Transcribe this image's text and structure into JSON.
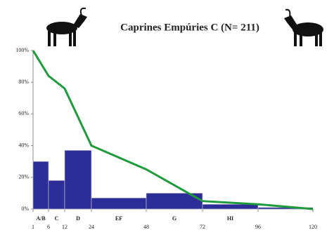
{
  "chart_data": {
    "type": "histogram",
    "title": "Caprines Empúries C (N= 211)",
    "bins": [
      1,
      6,
      12,
      24,
      48,
      72,
      96,
      120
    ],
    "classes": [
      "A/B",
      "C",
      "D",
      "EF",
      "G",
      "HI",
      null
    ],
    "values": [
      30,
      18,
      37,
      7,
      10,
      3,
      1
    ],
    "color": "#2d2d9a",
    "xlim": [
      1,
      120
    ],
    "xticks": [
      1,
      6,
      12,
      24,
      48,
      72,
      96,
      120
    ],
    "ylim": [
      0,
      100
    ],
    "yticks": [
      {
        "value": 0,
        "label": "0%"
      },
      {
        "value": 20,
        "label": "20%"
      },
      {
        "value": 40,
        "label": "40%"
      },
      {
        "value": 60,
        "label": "60%"
      },
      {
        "value": 80,
        "label": "80%"
      },
      {
        "value": 100,
        "label": "100%"
      }
    ],
    "line": {
      "x": [
        1,
        6,
        12,
        24,
        48,
        72,
        96,
        120
      ],
      "values": [
        100,
        84,
        76,
        40,
        25,
        5,
        3,
        0
      ],
      "color": "#1f9a3c"
    }
  }
}
